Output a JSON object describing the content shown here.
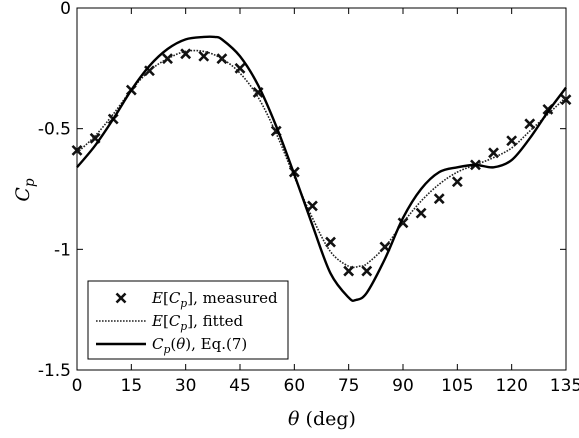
{
  "chart_data": {
    "type": "line",
    "xlabel": "θ (deg)",
    "ylabel": "Cp",
    "xlim": [
      0,
      135
    ],
    "ylim": [
      -1.5,
      0
    ],
    "xticks": [
      0,
      15,
      30,
      45,
      60,
      75,
      90,
      105,
      120,
      135
    ],
    "xtick_labels": [
      "0",
      "15",
      "30",
      "45",
      "60",
      "75",
      "90",
      "105",
      "120",
      "135"
    ],
    "yticks": [
      0,
      -0.5,
      -1,
      -1.5
    ],
    "ytick_labels": [
      "0",
      "-0.5",
      "-1",
      "-1.5"
    ],
    "grid": false,
    "legend_position": "bottom-left",
    "series": [
      {
        "name": "E[Cp], measured",
        "style": "markers-x",
        "color": "#111111",
        "x": [
          0,
          5,
          10,
          15,
          20,
          25,
          30,
          35,
          40,
          45,
          50,
          55,
          60,
          65,
          70,
          75,
          80,
          85,
          90,
          95,
          100,
          105,
          110,
          115,
          120,
          125,
          130,
          135
        ],
        "y": [
          -0.59,
          -0.54,
          -0.46,
          -0.34,
          -0.26,
          -0.21,
          -0.19,
          -0.2,
          -0.21,
          -0.25,
          -0.35,
          -0.51,
          -0.68,
          -0.82,
          -0.97,
          -1.09,
          -1.09,
          -0.99,
          -0.89,
          -0.85,
          -0.79,
          -0.72,
          -0.65,
          -0.6,
          -0.55,
          -0.48,
          -0.42,
          -0.38
        ]
      },
      {
        "name": "E[Cp], fitted",
        "style": "dotted",
        "color": "#222222",
        "x": [
          0,
          5,
          10,
          15,
          20,
          25,
          30,
          35,
          40,
          45,
          50,
          55,
          60,
          65,
          70,
          75,
          78,
          80,
          85,
          90,
          95,
          100,
          105,
          110,
          115,
          120,
          125,
          130,
          135
        ],
        "y": [
          -0.6,
          -0.53,
          -0.44,
          -0.34,
          -0.26,
          -0.21,
          -0.18,
          -0.18,
          -0.21,
          -0.27,
          -0.37,
          -0.52,
          -0.7,
          -0.87,
          -1.01,
          -1.07,
          -1.07,
          -1.06,
          -0.99,
          -0.89,
          -0.8,
          -0.73,
          -0.68,
          -0.65,
          -0.62,
          -0.58,
          -0.51,
          -0.44,
          -0.37
        ]
      },
      {
        "name": "Cp(θ), Eq.(7)",
        "style": "solid",
        "color": "#000000",
        "x": [
          0,
          5,
          10,
          15,
          20,
          25,
          30,
          35,
          38,
          40,
          45,
          50,
          55,
          60,
          65,
          70,
          75,
          77,
          80,
          85,
          90,
          95,
          100,
          105,
          110,
          115,
          120,
          125,
          130,
          135
        ],
        "y": [
          -0.66,
          -0.57,
          -0.46,
          -0.34,
          -0.24,
          -0.17,
          -0.13,
          -0.12,
          -0.12,
          -0.13,
          -0.2,
          -0.32,
          -0.49,
          -0.69,
          -0.9,
          -1.1,
          -1.2,
          -1.21,
          -1.18,
          -1.04,
          -0.87,
          -0.75,
          -0.68,
          -0.66,
          -0.65,
          -0.66,
          -0.63,
          -0.54,
          -0.43,
          -0.33
        ]
      }
    ]
  }
}
